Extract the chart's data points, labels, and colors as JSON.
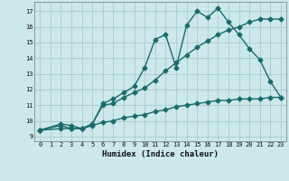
{
  "background_color": "#cce8e8",
  "grid_color": "#aacccc",
  "line_color": "#1a6b6b",
  "xlabel": "Humidex (Indice chaleur)",
  "xlim": [
    -0.5,
    23.5
  ],
  "ylim": [
    8.7,
    17.6
  ],
  "yticks": [
    9,
    10,
    11,
    12,
    13,
    14,
    15,
    16,
    17
  ],
  "xticks": [
    0,
    1,
    2,
    3,
    4,
    5,
    6,
    7,
    8,
    9,
    10,
    11,
    12,
    13,
    14,
    15,
    16,
    17,
    18,
    19,
    20,
    21,
    22,
    23
  ],
  "line1_x": [
    0,
    2,
    3,
    4,
    5,
    6,
    7,
    8,
    9,
    10,
    11,
    12,
    13,
    14,
    15,
    16,
    17,
    18,
    19,
    20,
    21,
    22,
    23
  ],
  "line1_y": [
    9.4,
    9.8,
    9.7,
    9.5,
    9.8,
    11.1,
    11.4,
    11.8,
    12.2,
    13.4,
    15.2,
    15.5,
    13.4,
    16.1,
    17.0,
    16.6,
    17.2,
    16.3,
    15.5,
    14.6,
    13.9,
    12.5,
    11.5
  ],
  "line2_x": [
    0,
    2,
    3,
    4,
    5,
    6,
    7,
    8,
    9,
    10,
    11,
    12,
    13,
    14,
    15,
    16,
    17,
    18,
    19,
    20,
    21,
    22,
    23
  ],
  "line2_y": [
    9.4,
    9.7,
    9.5,
    9.5,
    9.8,
    11.0,
    11.1,
    11.5,
    11.8,
    12.1,
    12.6,
    13.2,
    13.7,
    14.2,
    14.7,
    15.1,
    15.5,
    15.8,
    16.0,
    16.3,
    16.5,
    16.5,
    16.5
  ],
  "line3_x": [
    0,
    2,
    3,
    4,
    5,
    6,
    7,
    8,
    9,
    10,
    11,
    12,
    13,
    14,
    15,
    16,
    17,
    18,
    19,
    20,
    21,
    22,
    23
  ],
  "line3_y": [
    9.4,
    9.5,
    9.5,
    9.5,
    9.7,
    9.9,
    10.0,
    10.2,
    10.3,
    10.4,
    10.6,
    10.7,
    10.9,
    11.0,
    11.1,
    11.2,
    11.3,
    11.3,
    11.4,
    11.4,
    11.4,
    11.5,
    11.5
  ],
  "marker": "D",
  "markersize": 2.5,
  "linewidth": 1.0,
  "tick_fontsize": 5.0,
  "xlabel_fontsize": 6.5
}
